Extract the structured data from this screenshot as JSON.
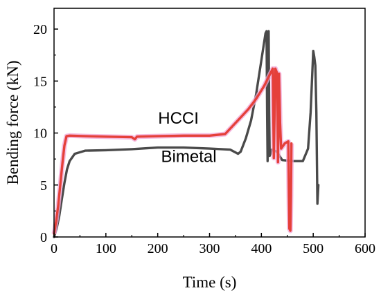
{
  "chart_data": {
    "type": "line",
    "xlabel": "Time (s)",
    "ylabel": "Bending force (kN)",
    "xlim": [
      0,
      600
    ],
    "ylim": [
      0,
      22
    ],
    "x_ticks": [
      "0",
      "100",
      "200",
      "300",
      "400",
      "500",
      "600"
    ],
    "y_ticks": [
      "0",
      "5",
      "10",
      "15",
      "20"
    ],
    "x_tick_values": [
      0,
      100,
      200,
      300,
      400,
      500,
      600
    ],
    "y_tick_values": [
      0,
      5,
      10,
      15,
      20
    ],
    "grid": false,
    "legend": "none",
    "series": [
      {
        "name": "HCCI",
        "color": "#e5403a",
        "label_at": [
          240,
          10.9
        ],
        "points": [
          [
            0,
            0.3
          ],
          [
            4,
            1.5
          ],
          [
            8,
            3
          ],
          [
            12,
            5
          ],
          [
            16,
            7
          ],
          [
            20,
            8.8
          ],
          [
            24,
            9.7
          ],
          [
            30,
            9.75
          ],
          [
            60,
            9.7
          ],
          [
            100,
            9.65
          ],
          [
            150,
            9.6
          ],
          [
            156,
            9.4
          ],
          [
            160,
            9.65
          ],
          [
            200,
            9.7
          ],
          [
            250,
            9.75
          ],
          [
            300,
            9.75
          ],
          [
            330,
            9.9
          ],
          [
            345,
            10.7
          ],
          [
            360,
            11.5
          ],
          [
            375,
            12.3
          ],
          [
            390,
            13.3
          ],
          [
            405,
            14.5
          ],
          [
            415,
            15.5
          ],
          [
            422,
            16.2
          ],
          [
            424,
            7.6
          ],
          [
            427,
            16.2
          ],
          [
            430,
            15.8
          ],
          [
            432,
            7.2
          ],
          [
            434,
            15.7
          ],
          [
            436,
            11
          ],
          [
            438,
            8.5
          ],
          [
            445,
            9
          ],
          [
            452,
            9.2
          ],
          [
            453,
            4.2
          ],
          [
            454,
            0.8
          ],
          [
            456,
            0.6
          ],
          [
            457,
            4
          ],
          [
            458,
            9.0
          ]
        ]
      },
      {
        "name": "Bimetal",
        "color": "#4a4a4a",
        "label_at": [
          260,
          7.2
        ],
        "points": [
          [
            0,
            0
          ],
          [
            5,
            0.8
          ],
          [
            10,
            2
          ],
          [
            15,
            3.6
          ],
          [
            20,
            5.2
          ],
          [
            25,
            6.5
          ],
          [
            30,
            7.3
          ],
          [
            40,
            8.0
          ],
          [
            60,
            8.3
          ],
          [
            100,
            8.35
          ],
          [
            150,
            8.45
          ],
          [
            200,
            8.6
          ],
          [
            250,
            8.6
          ],
          [
            300,
            8.5
          ],
          [
            340,
            8.4
          ],
          [
            355,
            8.0
          ],
          [
            360,
            8.2
          ],
          [
            370,
            9.5
          ],
          [
            380,
            11.2
          ],
          [
            390,
            13.8
          ],
          [
            400,
            17
          ],
          [
            408,
            19.6
          ],
          [
            410,
            19.8
          ],
          [
            411,
            12
          ],
          [
            412,
            7.3
          ],
          [
            413,
            19.7
          ],
          [
            414,
            19.8
          ],
          [
            415,
            12
          ],
          [
            416,
            7.8
          ],
          [
            420,
            8.4
          ],
          [
            430,
            8.2
          ],
          [
            440,
            7.4
          ],
          [
            460,
            7.3
          ],
          [
            480,
            7.3
          ],
          [
            490,
            8.5
          ],
          [
            495,
            12
          ],
          [
            500,
            17.9
          ],
          [
            502,
            17.3
          ],
          [
            504,
            16.5
          ],
          [
            506,
            12
          ],
          [
            508,
            3.2
          ],
          [
            510,
            5
          ]
        ]
      }
    ]
  }
}
